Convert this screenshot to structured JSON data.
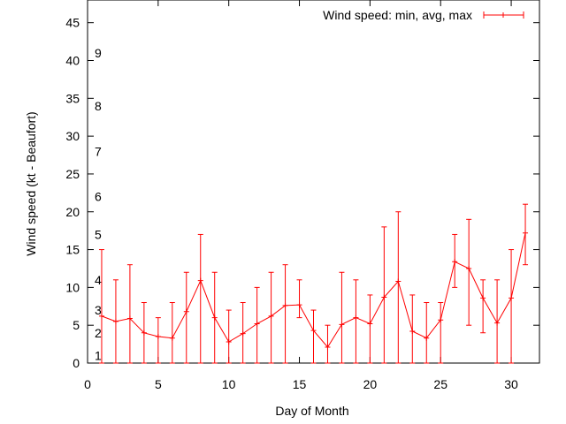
{
  "chart_data": {
    "type": "line",
    "title": "",
    "xlabel": "Day of Month",
    "ylabel": "Wind speed (kt - Beaufort)",
    "xlim": [
      0,
      32
    ],
    "ylim": [
      0,
      48
    ],
    "x_ticks": [
      0,
      5,
      10,
      15,
      20,
      25,
      30
    ],
    "y_ticks": [
      0,
      5,
      10,
      15,
      20,
      25,
      30,
      35,
      40,
      45
    ],
    "grid": false,
    "legend_position": "top-right",
    "series": [
      {
        "name": "Wind speed: min, avg, max",
        "color": "#ff0000",
        "style": "line with error bars",
        "x": [
          1,
          2,
          3,
          4,
          5,
          6,
          7,
          8,
          9,
          10,
          11,
          12,
          13,
          14,
          15,
          16,
          17,
          18,
          19,
          20,
          21,
          22,
          23,
          24,
          25,
          26,
          27,
          28,
          29,
          30,
          31
        ],
        "avg": [
          6.2,
          5.5,
          5.9,
          4.0,
          3.5,
          3.3,
          6.8,
          10.9,
          6.0,
          2.8,
          3.9,
          5.2,
          6.2,
          7.6,
          7.7,
          4.3,
          2.1,
          5.1,
          6.0,
          5.2,
          8.7,
          10.8,
          4.2,
          3.3,
          5.7,
          13.4,
          12.5,
          8.6,
          5.3,
          8.6,
          17.2
        ],
        "min": [
          0,
          0,
          0,
          0,
          0,
          0,
          0,
          0,
          0,
          0,
          0,
          0,
          0,
          0,
          6,
          0,
          0,
          0,
          0,
          0,
          0,
          0,
          0,
          0,
          0,
          10,
          5,
          4,
          0,
          0,
          13
        ],
        "max": [
          15,
          11,
          13,
          8,
          6,
          8,
          12,
          17,
          12,
          7,
          8,
          10,
          12,
          13,
          11,
          7,
          5,
          12,
          11,
          9,
          18,
          20,
          9,
          8,
          8,
          17,
          19,
          11,
          11,
          15,
          21
        ]
      }
    ],
    "beaufort_labels": [
      {
        "label": "1",
        "kt": 1
      },
      {
        "label": "2",
        "kt": 4
      },
      {
        "label": "3",
        "kt": 7
      },
      {
        "label": "4",
        "kt": 11
      },
      {
        "label": "5",
        "kt": 17
      },
      {
        "label": "6",
        "kt": 22
      },
      {
        "label": "7",
        "kt": 28
      },
      {
        "label": "8",
        "kt": 34
      },
      {
        "label": "9",
        "kt": 41
      }
    ]
  }
}
